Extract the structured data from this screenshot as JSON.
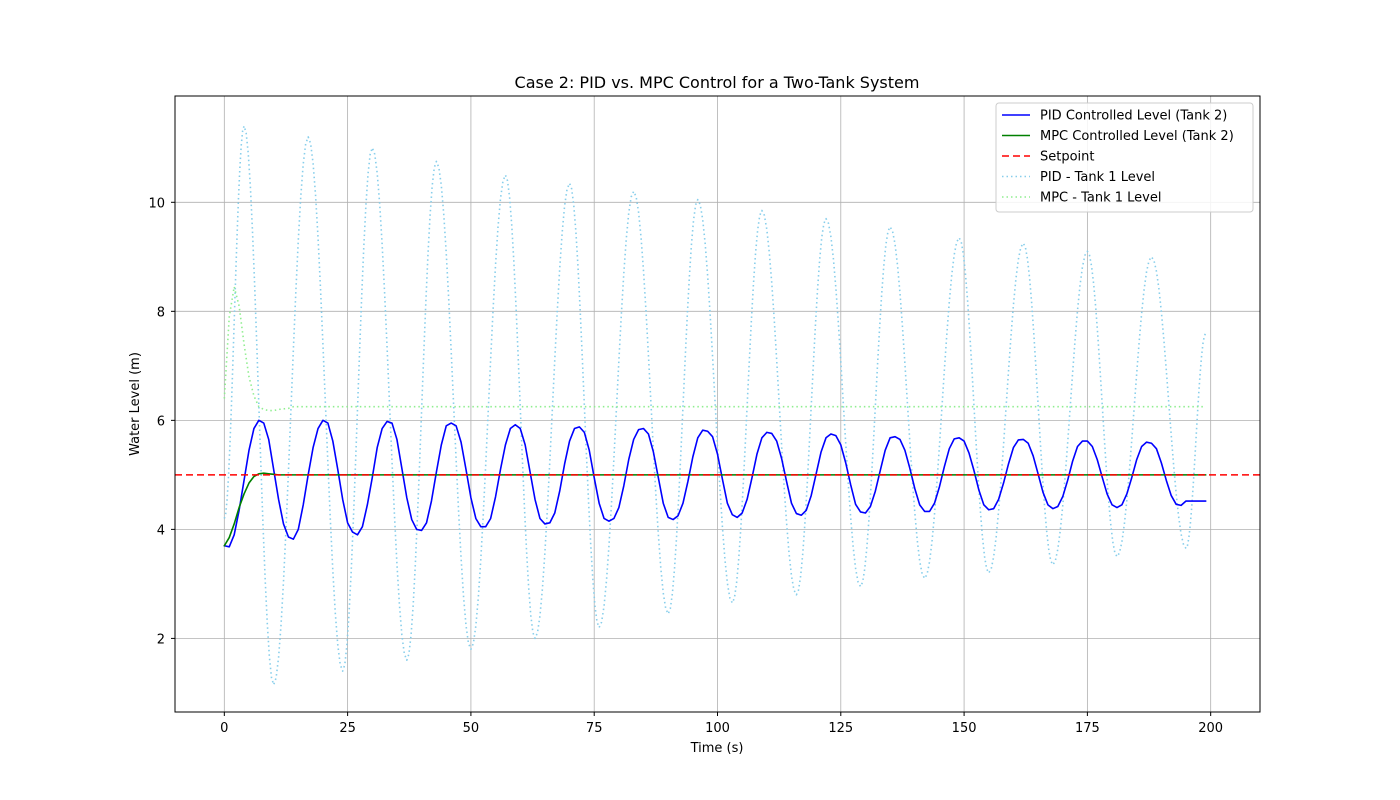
{
  "chart_data": {
    "type": "line",
    "title": "Case 2: PID vs. MPC Control for a Two-Tank System",
    "xlabel": "Time (s)",
    "ylabel": "Water Level (m)",
    "xlim": [
      -10,
      210
    ],
    "ylim": [
      0.65,
      11.95
    ],
    "xticks": [
      0,
      25,
      50,
      75,
      100,
      125,
      150,
      175,
      200
    ],
    "yticks": [
      2,
      4,
      6,
      8,
      10
    ],
    "grid": true,
    "legend_position": "top-right",
    "series": [
      {
        "name": "PID Controlled Level (Tank 2)",
        "color": "#0000ff",
        "style": "solid",
        "points": [
          [
            0,
            3.7
          ],
          [
            1,
            3.68
          ],
          [
            2,
            3.9
          ],
          [
            3,
            4.35
          ],
          [
            4,
            4.9
          ],
          [
            5,
            5.45
          ],
          [
            6,
            5.85
          ],
          [
            7,
            6.0
          ],
          [
            8,
            5.95
          ],
          [
            9,
            5.65
          ],
          [
            10,
            5.1
          ],
          [
            11,
            4.55
          ],
          [
            12,
            4.1
          ],
          [
            13,
            3.86
          ],
          [
            14,
            3.82
          ],
          [
            15,
            4.0
          ],
          [
            16,
            4.45
          ],
          [
            17,
            5.0
          ],
          [
            18,
            5.5
          ],
          [
            19,
            5.85
          ],
          [
            20,
            6.0
          ],
          [
            21,
            5.95
          ],
          [
            22,
            5.62
          ],
          [
            23,
            5.1
          ],
          [
            24,
            4.55
          ],
          [
            25,
            4.12
          ],
          [
            26,
            3.95
          ],
          [
            27,
            3.9
          ],
          [
            28,
            4.05
          ],
          [
            29,
            4.45
          ],
          [
            30,
            4.95
          ],
          [
            31,
            5.5
          ],
          [
            32,
            5.85
          ],
          [
            33,
            5.98
          ],
          [
            34,
            5.95
          ],
          [
            35,
            5.65
          ],
          [
            36,
            5.12
          ],
          [
            37,
            4.58
          ],
          [
            38,
            4.18
          ],
          [
            39,
            4.0
          ],
          [
            40,
            3.98
          ],
          [
            41,
            4.12
          ],
          [
            42,
            4.52
          ],
          [
            43,
            5.05
          ],
          [
            44,
            5.55
          ],
          [
            45,
            5.9
          ],
          [
            46,
            5.95
          ],
          [
            47,
            5.9
          ],
          [
            48,
            5.6
          ],
          [
            49,
            5.1
          ],
          [
            50,
            4.58
          ],
          [
            51,
            4.2
          ],
          [
            52,
            4.05
          ],
          [
            53,
            4.05
          ],
          [
            54,
            4.2
          ],
          [
            55,
            4.6
          ],
          [
            56,
            5.1
          ],
          [
            57,
            5.55
          ],
          [
            58,
            5.85
          ],
          [
            59,
            5.92
          ],
          [
            60,
            5.85
          ],
          [
            61,
            5.55
          ],
          [
            62,
            5.05
          ],
          [
            63,
            4.55
          ],
          [
            64,
            4.2
          ],
          [
            65,
            4.1
          ],
          [
            66,
            4.12
          ],
          [
            67,
            4.3
          ],
          [
            68,
            4.7
          ],
          [
            69,
            5.2
          ],
          [
            70,
            5.62
          ],
          [
            71,
            5.85
          ],
          [
            72,
            5.88
          ],
          [
            73,
            5.78
          ],
          [
            74,
            5.45
          ],
          [
            75,
            4.95
          ],
          [
            76,
            4.48
          ],
          [
            77,
            4.2
          ],
          [
            78,
            4.15
          ],
          [
            79,
            4.2
          ],
          [
            80,
            4.4
          ],
          [
            81,
            4.8
          ],
          [
            82,
            5.28
          ],
          [
            83,
            5.65
          ],
          [
            84,
            5.83
          ],
          [
            85,
            5.85
          ],
          [
            86,
            5.75
          ],
          [
            87,
            5.42
          ],
          [
            88,
            4.95
          ],
          [
            89,
            4.48
          ],
          [
            90,
            4.22
          ],
          [
            91,
            4.18
          ],
          [
            92,
            4.25
          ],
          [
            93,
            4.48
          ],
          [
            94,
            4.88
          ],
          [
            95,
            5.33
          ],
          [
            96,
            5.68
          ],
          [
            97,
            5.82
          ],
          [
            98,
            5.8
          ],
          [
            99,
            5.7
          ],
          [
            100,
            5.38
          ],
          [
            101,
            4.92
          ],
          [
            102,
            4.48
          ],
          [
            103,
            4.27
          ],
          [
            104,
            4.22
          ],
          [
            105,
            4.3
          ],
          [
            106,
            4.55
          ],
          [
            107,
            4.95
          ],
          [
            108,
            5.38
          ],
          [
            109,
            5.68
          ],
          [
            110,
            5.78
          ],
          [
            111,
            5.76
          ],
          [
            112,
            5.62
          ],
          [
            113,
            5.3
          ],
          [
            114,
            4.88
          ],
          [
            115,
            4.48
          ],
          [
            116,
            4.29
          ],
          [
            117,
            4.26
          ],
          [
            118,
            4.35
          ],
          [
            119,
            4.62
          ],
          [
            120,
            5.02
          ],
          [
            121,
            5.42
          ],
          [
            122,
            5.68
          ],
          [
            123,
            5.75
          ],
          [
            124,
            5.72
          ],
          [
            125,
            5.55
          ],
          [
            126,
            5.22
          ],
          [
            127,
            4.82
          ],
          [
            128,
            4.46
          ],
          [
            129,
            4.32
          ],
          [
            130,
            4.3
          ],
          [
            131,
            4.42
          ],
          [
            132,
            4.7
          ],
          [
            133,
            5.08
          ],
          [
            134,
            5.45
          ],
          [
            135,
            5.68
          ],
          [
            136,
            5.7
          ],
          [
            137,
            5.65
          ],
          [
            138,
            5.45
          ],
          [
            139,
            5.12
          ],
          [
            140,
            4.75
          ],
          [
            141,
            4.45
          ],
          [
            142,
            4.33
          ],
          [
            143,
            4.33
          ],
          [
            144,
            4.48
          ],
          [
            145,
            4.78
          ],
          [
            146,
            5.15
          ],
          [
            147,
            5.48
          ],
          [
            148,
            5.66
          ],
          [
            149,
            5.68
          ],
          [
            150,
            5.62
          ],
          [
            151,
            5.4
          ],
          [
            152,
            5.08
          ],
          [
            153,
            4.72
          ],
          [
            154,
            4.45
          ],
          [
            155,
            4.36
          ],
          [
            156,
            4.38
          ],
          [
            157,
            4.55
          ],
          [
            158,
            4.85
          ],
          [
            159,
            5.2
          ],
          [
            160,
            5.5
          ],
          [
            161,
            5.64
          ],
          [
            162,
            5.65
          ],
          [
            163,
            5.58
          ],
          [
            164,
            5.35
          ],
          [
            165,
            5.02
          ],
          [
            166,
            4.68
          ],
          [
            167,
            4.45
          ],
          [
            168,
            4.38
          ],
          [
            169,
            4.42
          ],
          [
            170,
            4.6
          ],
          [
            171,
            4.9
          ],
          [
            172,
            5.25
          ],
          [
            173,
            5.52
          ],
          [
            174,
            5.62
          ],
          [
            175,
            5.62
          ],
          [
            176,
            5.52
          ],
          [
            177,
            5.28
          ],
          [
            178,
            4.96
          ],
          [
            179,
            4.65
          ],
          [
            180,
            4.45
          ],
          [
            181,
            4.4
          ],
          [
            182,
            4.45
          ],
          [
            183,
            4.65
          ],
          [
            184,
            4.95
          ],
          [
            185,
            5.28
          ],
          [
            186,
            5.52
          ],
          [
            187,
            5.6
          ],
          [
            188,
            5.58
          ],
          [
            189,
            5.48
          ],
          [
            190,
            5.22
          ],
          [
            191,
            4.9
          ],
          [
            192,
            4.62
          ],
          [
            193,
            4.46
          ],
          [
            194,
            4.44
          ],
          [
            195,
            4.52
          ],
          [
            199,
            4.52
          ]
        ]
      },
      {
        "name": "MPC Controlled Level (Tank 2)",
        "color": "#008000",
        "style": "solid",
        "points": [
          [
            0,
            3.7
          ],
          [
            1,
            3.85
          ],
          [
            2,
            4.1
          ],
          [
            3,
            4.4
          ],
          [
            4,
            4.65
          ],
          [
            5,
            4.85
          ],
          [
            6,
            4.97
          ],
          [
            7,
            5.02
          ],
          [
            8,
            5.03
          ],
          [
            9,
            5.02
          ],
          [
            10,
            5.01
          ],
          [
            11,
            5.0
          ],
          [
            12,
            5.0
          ],
          [
            199,
            5.0
          ]
        ]
      },
      {
        "name": "Setpoint",
        "color": "#ff0000",
        "style": "dashed",
        "points": [
          [
            -10,
            5.0
          ],
          [
            210,
            5.0
          ]
        ]
      },
      {
        "name": "PID - Tank 1 Level",
        "color": "#87ceeb",
        "style": "dotted",
        "amplitude_peaks": [
          [
            4,
            11.4
          ],
          [
            17,
            11.2
          ],
          [
            30,
            11.0
          ],
          [
            43,
            10.75
          ],
          [
            57,
            10.5
          ],
          [
            70,
            10.35
          ],
          [
            83,
            10.2
          ],
          [
            96,
            10.05
          ],
          [
            109,
            9.85
          ],
          [
            122,
            9.7
          ],
          [
            135,
            9.55
          ],
          [
            149,
            9.35
          ],
          [
            162,
            9.25
          ],
          [
            175,
            9.1
          ],
          [
            188,
            9.0
          ]
        ],
        "amplitude_troughs": [
          [
            10,
            1.15
          ],
          [
            24,
            1.4
          ],
          [
            37,
            1.6
          ],
          [
            50,
            1.8
          ],
          [
            63,
            2.0
          ],
          [
            76,
            2.2
          ],
          [
            90,
            2.45
          ],
          [
            103,
            2.65
          ],
          [
            116,
            2.8
          ],
          [
            129,
            2.95
          ],
          [
            142,
            3.1
          ],
          [
            155,
            3.2
          ],
          [
            168,
            3.35
          ],
          [
            181,
            3.5
          ],
          [
            195,
            3.65
          ]
        ],
        "start": [
          0,
          4.2
        ],
        "end": [
          199,
          7.6
        ]
      },
      {
        "name": "MPC - Tank 1 Level",
        "color": "#90ee90",
        "style": "dotted",
        "points": [
          [
            0,
            6.4
          ],
          [
            1,
            7.9
          ],
          [
            2,
            8.45
          ],
          [
            3,
            8.1
          ],
          [
            4,
            7.4
          ],
          [
            5,
            6.8
          ],
          [
            6,
            6.45
          ],
          [
            7,
            6.25
          ],
          [
            8,
            6.2
          ],
          [
            9,
            6.18
          ],
          [
            10,
            6.18
          ],
          [
            11,
            6.2
          ],
          [
            13,
            6.22
          ],
          [
            14,
            6.25
          ],
          [
            199,
            6.25
          ]
        ]
      }
    ]
  }
}
